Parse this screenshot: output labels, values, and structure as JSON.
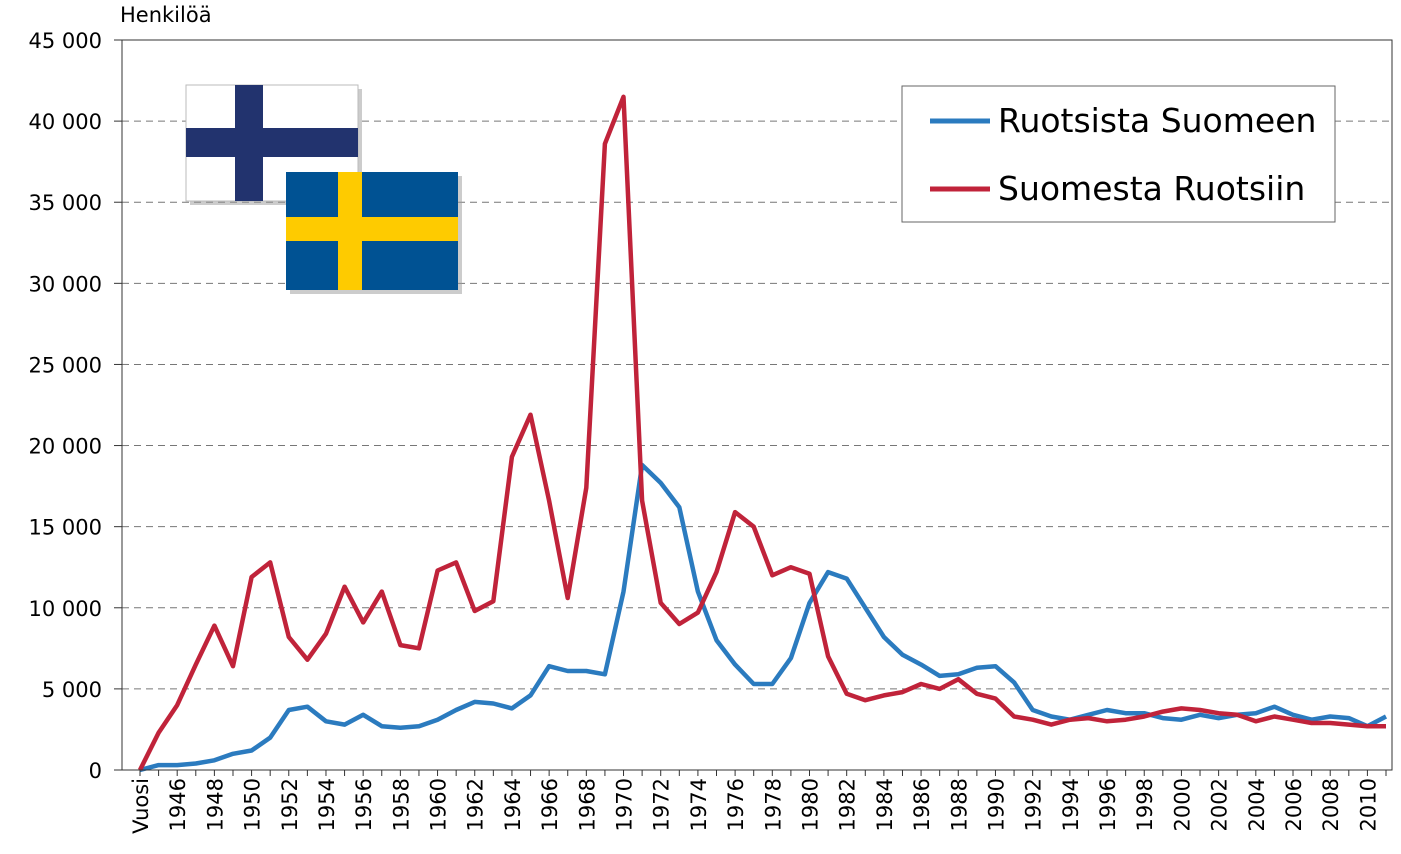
{
  "chart_data": {
    "type": "line",
    "y_axis_label": "Henkilöä",
    "categories": [
      "Vuosi",
      null,
      "1946",
      null,
      "1948",
      null,
      "1950",
      null,
      "1952",
      null,
      "1954",
      null,
      "1956",
      null,
      "1958",
      null,
      "1960",
      null,
      "1962",
      null,
      "1964",
      null,
      "1966",
      null,
      "1968",
      null,
      "1970",
      null,
      "1972",
      null,
      "1974",
      null,
      "1976",
      null,
      "1978",
      null,
      "1980",
      null,
      "1982",
      null,
      "1984",
      null,
      "1986",
      null,
      "1988",
      null,
      "1990",
      null,
      "1992",
      null,
      "1994",
      null,
      "1996",
      null,
      "1998",
      null,
      "2000",
      null,
      "2002",
      null,
      "2004",
      null,
      "2006",
      null,
      "2008",
      null,
      "2010",
      null
    ],
    "series": [
      {
        "name": "Ruotsista Suomeen",
        "color": "#2b7bbf",
        "values": [
          0,
          300,
          300,
          400,
          600,
          1000,
          1200,
          2000,
          3700,
          3900,
          3000,
          2800,
          3400,
          2700,
          2600,
          2700,
          3100,
          3700,
          4200,
          4100,
          3800,
          4600,
          6400,
          6100,
          6100,
          5900,
          11000,
          18800,
          17700,
          16200,
          11000,
          8000,
          6500,
          5300,
          5300,
          6900,
          10300,
          12200,
          11800,
          10000,
          8200,
          7100,
          6500,
          5800,
          5900,
          6300,
          6400,
          5400,
          3700,
          3300,
          3100,
          3400,
          3700,
          3500,
          3500,
          3200,
          3100,
          3400,
          3200,
          3400,
          3500,
          3900,
          3400,
          3100,
          3300,
          3200,
          2700,
          3300
        ]
      },
      {
        "name": "Suomesta Ruotsiin",
        "color": "#c0233a",
        "values": [
          0,
          2300,
          4000,
          6500,
          8900,
          6400,
          11900,
          12800,
          8200,
          6800,
          8400,
          11300,
          9100,
          11000,
          7700,
          7500,
          12300,
          12800,
          9800,
          10400,
          19300,
          21900,
          16600,
          10600,
          17400,
          38600,
          41500,
          16600,
          10300,
          9000,
          9700,
          12200,
          15900,
          15000,
          12000,
          12500,
          12100,
          7000,
          4700,
          4300,
          4600,
          4800,
          5300,
          5000,
          5600,
          4700,
          4400,
          3300,
          3100,
          2800,
          3100,
          3200,
          3000,
          3100,
          3300,
          3600,
          3800,
          3700,
          3500,
          3400,
          3000,
          3300,
          3100,
          2900,
          2900,
          2800,
          2700,
          2700
        ]
      }
    ],
    "ylim": [
      0,
      45000
    ],
    "yticks": [
      0,
      {
        "value": 5000,
        "label": "5 000"
      },
      {
        "value": 10000,
        "label": "10 000"
      },
      {
        "value": 15000,
        "label": "15 000"
      },
      {
        "value": 20000,
        "label": "20 000"
      },
      {
        "value": 25000,
        "label": "25 000"
      },
      {
        "value": 30000,
        "label": "30 000"
      },
      {
        "value": 35000,
        "label": "35 000"
      },
      {
        "value": 40000,
        "label": "40 000"
      },
      {
        "value": 45000,
        "label": "45 000"
      }
    ],
    "grid": true,
    "legend_position": "upper right"
  }
}
